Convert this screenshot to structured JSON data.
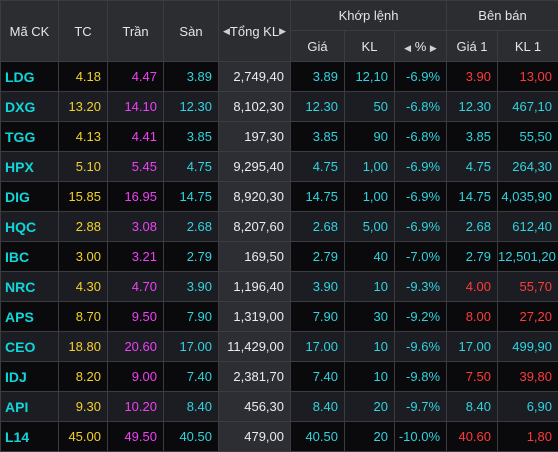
{
  "headers": {
    "symbol": "Mã CK",
    "ref": "TC",
    "ceiling": "Trần",
    "floor": "Sàn",
    "total_volume": "Tổng KL",
    "match_group": "Khớp lệnh",
    "match_price": "Giá",
    "match_volume": "KL",
    "match_pct": "%",
    "sell_group": "Bên bán",
    "sell_price1": "Giá 1",
    "sell_volume1": "KL 1"
  },
  "icons": {
    "left_arrow": "◀",
    "right_arrow": "▶"
  },
  "colors": {
    "symbol": "#11d6d9",
    "reference": "#f2d22a",
    "ceiling": "#f040f5",
    "floor": "#30d3de",
    "neutral": "#ececec",
    "decline_floor": "#30d3de",
    "decline": "#ff3a3a"
  },
  "rows": [
    {
      "sym": "LDG",
      "tc": "4.18",
      "tran": "4.47",
      "san": "3.89",
      "tkl": "2,749,40",
      "gia": "3.89",
      "kl": "12,10",
      "pct": "-6.9%",
      "gia1": "3.90",
      "kl1": "13,00",
      "c": "f",
      "c1": "r"
    },
    {
      "sym": "DXG",
      "tc": "13.20",
      "tran": "14.10",
      "san": "12.30",
      "tkl": "8,102,30",
      "gia": "12.30",
      "kl": "50",
      "pct": "-6.8%",
      "gia1": "12.30",
      "kl1": "467,10",
      "c": "f",
      "c1": "f"
    },
    {
      "sym": "TGG",
      "tc": "4.13",
      "tran": "4.41",
      "san": "3.85",
      "tkl": "197,30",
      "gia": "3.85",
      "kl": "90",
      "pct": "-6.8%",
      "gia1": "3.85",
      "kl1": "55,50",
      "c": "f",
      "c1": "f"
    },
    {
      "sym": "HPX",
      "tc": "5.10",
      "tran": "5.45",
      "san": "4.75",
      "tkl": "9,295,40",
      "gia": "4.75",
      "kl": "1,00",
      "pct": "-6.9%",
      "gia1": "4.75",
      "kl1": "264,30",
      "c": "f",
      "c1": "f"
    },
    {
      "sym": "DIG",
      "tc": "15.85",
      "tran": "16.95",
      "san": "14.75",
      "tkl": "8,920,30",
      "gia": "14.75",
      "kl": "1,00",
      "pct": "-6.9%",
      "gia1": "14.75",
      "kl1": "4,035,90",
      "c": "f",
      "c1": "f"
    },
    {
      "sym": "HQC",
      "tc": "2.88",
      "tran": "3.08",
      "san": "2.68",
      "tkl": "8,207,60",
      "gia": "2.68",
      "kl": "5,00",
      "pct": "-6.9%",
      "gia1": "2.68",
      "kl1": "612,40",
      "c": "f",
      "c1": "f"
    },
    {
      "sym": "IBC",
      "tc": "3.00",
      "tran": "3.21",
      "san": "2.79",
      "tkl": "169,50",
      "gia": "2.79",
      "kl": "40",
      "pct": "-7.0%",
      "gia1": "2.79",
      "kl1": "12,501,20",
      "c": "f",
      "c1": "f"
    },
    {
      "sym": "NRC",
      "tc": "4.30",
      "tran": "4.70",
      "san": "3.90",
      "tkl": "1,196,40",
      "gia": "3.90",
      "kl": "10",
      "pct": "-9.3%",
      "gia1": "4.00",
      "kl1": "55,70",
      "c": "f",
      "c1": "r"
    },
    {
      "sym": "APS",
      "tc": "8.70",
      "tran": "9.50",
      "san": "7.90",
      "tkl": "1,319,00",
      "gia": "7.90",
      "kl": "30",
      "pct": "-9.2%",
      "gia1": "8.00",
      "kl1": "27,20",
      "c": "f",
      "c1": "r"
    },
    {
      "sym": "CEO",
      "tc": "18.80",
      "tran": "20.60",
      "san": "17.00",
      "tkl": "11,429,00",
      "gia": "17.00",
      "kl": "10",
      "pct": "-9.6%",
      "gia1": "17.00",
      "kl1": "499,90",
      "c": "f",
      "c1": "f"
    },
    {
      "sym": "IDJ",
      "tc": "8.20",
      "tran": "9.00",
      "san": "7.40",
      "tkl": "2,381,70",
      "gia": "7.40",
      "kl": "10",
      "pct": "-9.8%",
      "gia1": "7.50",
      "kl1": "39,80",
      "c": "f",
      "c1": "r"
    },
    {
      "sym": "API",
      "tc": "9.30",
      "tran": "10.20",
      "san": "8.40",
      "tkl": "456,30",
      "gia": "8.40",
      "kl": "20",
      "pct": "-9.7%",
      "gia1": "8.40",
      "kl1": "6,90",
      "c": "f",
      "c1": "f"
    },
    {
      "sym": "L14",
      "tc": "45.00",
      "tran": "49.50",
      "san": "40.50",
      "tkl": "479,00",
      "gia": "40.50",
      "kl": "20",
      "pct": "-10.0%",
      "gia1": "40.60",
      "kl1": "1,80",
      "c": "f",
      "c1": "r"
    }
  ]
}
